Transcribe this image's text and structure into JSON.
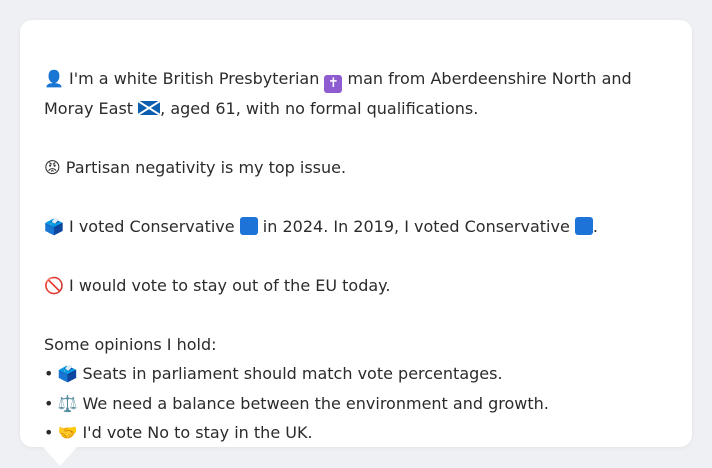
{
  "profile": {
    "line1_icon": "👤",
    "line1_a": "I'm a white British Presbyterian",
    "line1_cross": "✝",
    "line1_b": "man from Aberdeenshire North and",
    "line2_a": "Moray East",
    "line2_b": ", aged 61, with no formal qualifications.",
    "issue_icon": "😡",
    "issue_text": "Partisan negativity is my top issue.",
    "vote_icon": "🗳️",
    "vote_a": "I voted Conservative",
    "vote_b": "in 2024. In 2019, I voted Conservative",
    "vote_c": ".",
    "eu_icon": "🚫",
    "eu_text": "I would vote to stay out of the EU today.",
    "opinions_heading": "Some opinions I hold:",
    "bullet": "•",
    "opinions": [
      {
        "icon": "🗳️",
        "text": "Seats in parliament should match vote percentages."
      },
      {
        "icon": "⚖️",
        "text": "We need a balance between the environment and growth."
      },
      {
        "icon": "🤝",
        "text": "I'd vote No to stay in the UK."
      }
    ]
  },
  "colors": {
    "background": "#eef0f3",
    "card": "#ffffff",
    "text": "#2b2b2b",
    "conservative_blue": "#1e73d9",
    "cross_purple": "#8e5bd1",
    "scotland_blue": "#0d5eaf"
  }
}
